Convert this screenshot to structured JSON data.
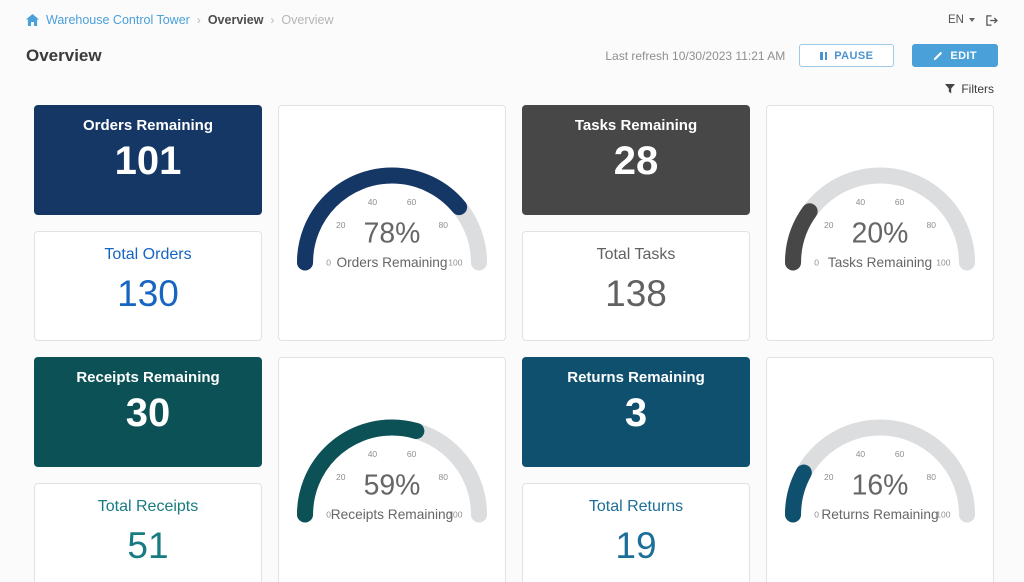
{
  "header": {
    "breadcrumb": {
      "root": "Warehouse Control Tower",
      "items": [
        "Overview",
        "Overview"
      ],
      "separator": "›"
    },
    "language": "EN",
    "page_title": "Overview",
    "last_refresh": "Last refresh 10/30/2023 11:21 AM",
    "pause_label": "PAUSE",
    "edit_label": "EDIT",
    "filters_label": "Filters"
  },
  "icons": {
    "home": "home-icon",
    "language_caret": "chevron-down-icon",
    "logout": "logout-icon",
    "pause": "pause-icon",
    "edit": "pencil-icon",
    "filters": "funnel-icon"
  },
  "colors": {
    "link_blue": "#4aa0d9",
    "edit_button": "#4aa0d9",
    "pause_border": "#9ec9e8",
    "gauge_track": "#dcdddf",
    "gauge_text": "#666666",
    "tick_text": "#8e8e8e"
  },
  "metrics": [
    {
      "id": "orders",
      "remaining_label": "Orders Remaining",
      "remaining_value": "101",
      "total_label": "Total Orders",
      "total_value": "130",
      "card_color": "#153766",
      "accent_color": "#1665c1",
      "gauge": {
        "percent": 78,
        "value_text": "78%",
        "label": "Orders Remaining",
        "color": "#153766",
        "ticks": [
          "0",
          "20",
          "40",
          "60",
          "80",
          "100"
        ]
      }
    },
    {
      "id": "tasks",
      "remaining_label": "Tasks Remaining",
      "remaining_value": "28",
      "total_label": "Total Tasks",
      "total_value": "138",
      "card_color": "#474747",
      "accent_color": "#616161",
      "gauge": {
        "percent": 20,
        "value_text": "20%",
        "label": "Tasks Remaining",
        "color": "#474747",
        "ticks": [
          "0",
          "20",
          "40",
          "60",
          "80",
          "100"
        ]
      }
    },
    {
      "id": "receipts",
      "remaining_label": "Receipts Remaining",
      "remaining_value": "30",
      "total_label": "Total Receipts",
      "total_value": "51",
      "card_color": "#0b5156",
      "accent_color": "#187b82",
      "gauge": {
        "percent": 59,
        "value_text": "59%",
        "label": "Receipts Remaining",
        "color": "#0b5156",
        "ticks": [
          "0",
          "20",
          "40",
          "60",
          "80",
          "100"
        ]
      }
    },
    {
      "id": "returns",
      "remaining_label": "Returns Remaining",
      "remaining_value": "3",
      "total_label": "Total Returns",
      "total_value": "19",
      "card_color": "#0f506e",
      "accent_color": "#1b6f99",
      "gauge": {
        "percent": 16,
        "value_text": "16%",
        "label": "Returns Remaining",
        "color": "#0f506e",
        "ticks": [
          "0",
          "20",
          "40",
          "60",
          "80",
          "100"
        ]
      }
    }
  ],
  "chart_data": [
    {
      "type": "gauge",
      "title": "Orders Remaining",
      "value": 78,
      "unit": "%",
      "range": [
        0,
        100
      ],
      "ticks": [
        0,
        20,
        40,
        60,
        80,
        100
      ]
    },
    {
      "type": "gauge",
      "title": "Tasks Remaining",
      "value": 20,
      "unit": "%",
      "range": [
        0,
        100
      ],
      "ticks": [
        0,
        20,
        40,
        60,
        80,
        100
      ]
    },
    {
      "type": "gauge",
      "title": "Receipts Remaining",
      "value": 59,
      "unit": "%",
      "range": [
        0,
        100
      ],
      "ticks": [
        0,
        20,
        40,
        60,
        80,
        100
      ]
    },
    {
      "type": "gauge",
      "title": "Returns Remaining",
      "value": 16,
      "unit": "%",
      "range": [
        0,
        100
      ],
      "ticks": [
        0,
        20,
        40,
        60,
        80,
        100
      ]
    }
  ]
}
